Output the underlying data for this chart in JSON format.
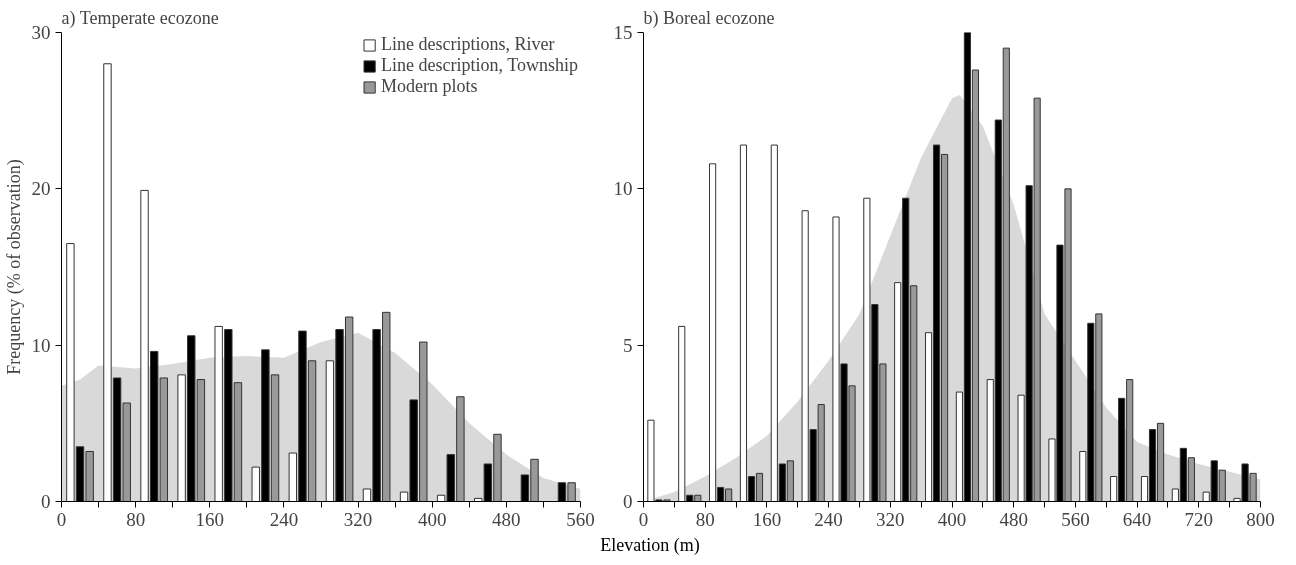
{
  "chart_data": [
    {
      "type": "bar",
      "title": "a) Temperate ecozone",
      "ylabel": "Frequency (% of observation)",
      "xlim": [
        0,
        560
      ],
      "ylim": [
        0,
        30
      ],
      "xticks": [
        0,
        {
          "value": 40,
          "label": null
        },
        80,
        {
          "value": 120,
          "label": null
        },
        160,
        {
          "value": 200,
          "label": null
        },
        240,
        {
          "value": 280,
          "label": null
        },
        320,
        {
          "value": 360,
          "label": null
        },
        400,
        {
          "value": 440,
          "label": null
        },
        480,
        {
          "value": 520,
          "label": null
        },
        560
      ],
      "yticks": [
        0,
        10,
        20,
        30
      ],
      "legend": "top right",
      "x": [
        20,
        60,
        100,
        140,
        180,
        220,
        260,
        300,
        340,
        380,
        420,
        460,
        500,
        540
      ],
      "series": [
        {
          "type": "area",
          "color": "#d9d9d9",
          "x": [
            0,
            20,
            40,
            80,
            120,
            160,
            200,
            240,
            280,
            320,
            360,
            400,
            440,
            480,
            520,
            560
          ],
          "values": [
            7.4,
            7.8,
            8.7,
            8.5,
            8.8,
            9.2,
            9.3,
            9.2,
            10.2,
            10.8,
            9.5,
            7.5,
            5.0,
            3.0,
            1.5,
            0.8
          ]
        },
        {
          "name": "Line descriptions, River",
          "color": "#ffffff",
          "values": [
            16.5,
            28,
            19.9,
            8.1,
            11.2,
            2.2,
            3.1,
            9.0,
            0.8,
            0.6,
            0.4,
            0.2,
            null,
            null
          ]
        },
        {
          "name": "Line description, Township",
          "color": "#000000",
          "values": [
            3.5,
            7.9,
            9.6,
            10.6,
            11.0,
            9.7,
            10.9,
            11.0,
            11.0,
            6.5,
            3.0,
            2.4,
            1.7,
            1.2
          ]
        },
        {
          "name": "Modern plots",
          "color": "#999999",
          "values": [
            3.2,
            6.3,
            7.9,
            7.8,
            7.6,
            8.1,
            9.0,
            11.8,
            12.1,
            10.2,
            6.7,
            4.3,
            2.7,
            1.2
          ]
        }
      ]
    },
    {
      "type": "bar",
      "title": "b) Boreal ecozone",
      "xlabel": "Elevation (m)",
      "xlim": [
        0,
        800
      ],
      "ylim": [
        0,
        15
      ],
      "xticks": [
        0,
        {
          "value": 40,
          "label": null
        },
        80,
        {
          "value": 120,
          "label": null
        },
        160,
        {
          "value": 200,
          "label": null
        },
        240,
        {
          "value": 280,
          "label": null
        },
        320,
        {
          "value": 360,
          "label": null
        },
        400,
        {
          "value": 440,
          "label": null
        },
        480,
        {
          "value": 520,
          "label": null
        },
        560,
        {
          "value": 600,
          "label": null
        },
        640,
        {
          "value": 680,
          "label": null
        },
        720,
        {
          "value": 760,
          "label": null
        },
        800
      ],
      "yticks": [
        0,
        5,
        10,
        15
      ],
      "x": [
        20,
        60,
        100,
        140,
        180,
        220,
        260,
        300,
        340,
        380,
        420,
        460,
        500,
        540,
        580,
        620,
        660,
        700,
        740,
        780
      ],
      "series": [
        {
          "type": "area",
          "color": "#d9d9d9",
          "x": [
            0,
            40,
            80,
            120,
            160,
            200,
            240,
            280,
            320,
            360,
            400,
            410,
            440,
            480,
            520,
            560,
            600,
            640,
            680,
            720,
            800
          ],
          "values": [
            0,
            0.3,
            0.8,
            1.4,
            2.1,
            3.2,
            4.5,
            6.0,
            8.5,
            11.0,
            12.9,
            13.0,
            12.0,
            9.5,
            6.0,
            4.5,
            3.0,
            1.9,
            1.5,
            1.2,
            0.7
          ]
        },
        {
          "color": "#ffffff",
          "values": [
            2.6,
            5.6,
            10.8,
            11.4,
            11.4,
            9.3,
            9.1,
            9.7,
            7.0,
            5.4,
            3.5,
            3.9,
            3.4,
            2.0,
            1.6,
            0.8,
            0.8,
            0.4,
            0.3,
            0.1
          ]
        },
        {
          "color": "#000000",
          "values": [
            0.05,
            0.2,
            0.45,
            0.8,
            1.2,
            2.3,
            4.4,
            6.3,
            9.7,
            11.4,
            15.0,
            12.2,
            10.1,
            8.2,
            5.7,
            3.3,
            2.3,
            1.7,
            1.3,
            1.2
          ]
        },
        {
          "color": "#999999",
          "values": [
            0.05,
            0.2,
            0.4,
            0.9,
            1.3,
            3.1,
            3.7,
            4.4,
            6.9,
            11.1,
            13.8,
            14.5,
            12.9,
            10.0,
            6.0,
            3.9,
            2.5,
            1.4,
            1.0,
            0.9
          ]
        }
      ]
    }
  ]
}
